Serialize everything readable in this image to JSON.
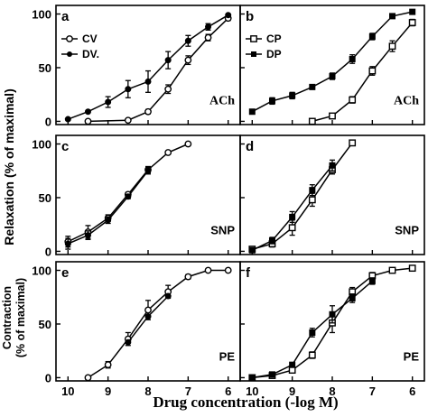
{
  "chart_data": {
    "type": "line",
    "xlabel": "Drug concentration (-log M)",
    "ylabels": {
      "relaxation": "Relaxation (% of maximal)",
      "contraction_line1": "Contraction",
      "contraction_line2": "(% of maximal)"
    },
    "x_ticks": [
      10,
      9,
      8,
      7,
      6
    ],
    "x_tick_labels": [
      "10",
      "9",
      "8",
      "7",
      "6"
    ],
    "y_ticks": [
      0,
      50,
      100
    ],
    "y_tick_labels": [
      "0",
      "50",
      "100"
    ],
    "xlim": [
      10.3,
      5.7
    ],
    "ylim": [
      -3,
      108
    ],
    "panels": [
      {
        "letter": "a",
        "agent": "ACh",
        "column": 0,
        "row": 0,
        "legend": [
          "CV",
          "DV."
        ],
        "series": [
          {
            "name": "CV",
            "marker": "open-circle",
            "x": [
              9.5,
              8.5,
              8,
              7.5,
              7,
              6.5,
              6
            ],
            "y": [
              0,
              1,
              9,
              30,
              57,
              78,
              96
            ],
            "err": [
              0,
              0,
              2,
              4,
              4,
              3,
              2
            ]
          },
          {
            "name": "DV.",
            "marker": "filled-circle",
            "x": [
              10,
              9.5,
              9,
              8.5,
              8,
              7.5,
              7,
              6.5,
              6
            ],
            "y": [
              2,
              9,
              18,
              30,
              37,
              57,
              75,
              88,
              99
            ],
            "err": [
              0,
              0,
              5,
              8,
              10,
              8,
              5,
              3,
              0
            ]
          }
        ]
      },
      {
        "letter": "b",
        "agent": "ACh",
        "column": 1,
        "row": 0,
        "legend": [
          "CP",
          "DP"
        ],
        "series": [
          {
            "name": "CP",
            "marker": "open-square",
            "x": [
              8.5,
              8,
              7.5,
              7,
              6.5,
              6
            ],
            "y": [
              0,
              5,
              20,
              47,
              70,
              92
            ],
            "err": [
              0,
              0,
              3,
              4,
              5,
              3
            ]
          },
          {
            "name": "DP",
            "marker": "filled-square",
            "x": [
              10,
              9.5,
              9,
              8.5,
              8,
              7.5,
              7,
              6.5,
              6
            ],
            "y": [
              9,
              19,
              24,
              32,
              42,
              58,
              79,
              98,
              102
            ],
            "err": [
              0,
              3,
              3,
              2,
              3,
              4,
              3,
              0,
              0
            ]
          }
        ]
      },
      {
        "letter": "c",
        "agent": "SNP",
        "column": 0,
        "row": 1,
        "series": [
          {
            "name": "CV",
            "marker": "open-circle",
            "x": [
              10,
              9.5,
              9,
              8.5,
              8,
              7.5,
              7
            ],
            "y": [
              9,
              18,
              31,
              53,
              76,
              92,
              100
            ],
            "err": [
              5,
              6,
              3,
              2,
              3,
              0,
              0
            ]
          },
          {
            "name": "DV.",
            "marker": "filled-circle",
            "x": [
              10,
              9.5,
              9,
              8.5,
              8
            ],
            "y": [
              7,
              15,
              29,
              51,
              75
            ],
            "err": [
              5,
              4,
              3,
              2,
              3
            ]
          }
        ]
      },
      {
        "letter": "d",
        "agent": "SNP",
        "column": 1,
        "row": 1,
        "series": [
          {
            "name": "CP",
            "marker": "open-square",
            "x": [
              10,
              9.5,
              9,
              8.5,
              8,
              7.5
            ],
            "y": [
              2,
              7,
              22,
              48,
              76,
              101
            ],
            "err": [
              0,
              3,
              7,
              6,
              4,
              0
            ]
          },
          {
            "name": "DP",
            "marker": "filled-square",
            "x": [
              10,
              9.5,
              9,
              8.5,
              8
            ],
            "y": [
              1,
              10,
              32,
              57,
              80
            ],
            "err": [
              0,
              3,
              5,
              5,
              5
            ]
          }
        ]
      },
      {
        "letter": "e",
        "agent": "PE",
        "column": 0,
        "row": 2,
        "series": [
          {
            "name": "CV",
            "marker": "open-circle",
            "x": [
              9.5,
              9,
              8.5,
              8,
              7.5,
              7,
              6.5,
              6
            ],
            "y": [
              0,
              12,
              36,
              63,
              80,
              94,
              100,
              100
            ],
            "err": [
              0,
              3,
              6,
              9,
              6,
              2,
              0,
              0
            ]
          },
          {
            "name": "DV.",
            "marker": "filled-circle",
            "x": [
              8.5,
              8,
              7.5
            ],
            "y": [
              33,
              57,
              76
            ],
            "err": [
              0,
              0,
              0
            ]
          }
        ]
      },
      {
        "letter": "f",
        "agent": "PE",
        "column": 1,
        "row": 2,
        "series": [
          {
            "name": "CP",
            "marker": "open-square",
            "x": [
              10,
              9.5,
              9,
              8.5,
              8,
              7.5,
              7,
              6.5,
              6
            ],
            "y": [
              0,
              2,
              7,
              21,
              51,
              80,
              95,
              100,
              102
            ],
            "err": [
              0,
              0,
              2,
              3,
              9,
              4,
              3,
              0,
              0
            ]
          },
          {
            "name": "DP",
            "marker": "filled-square",
            "x": [
              10,
              9.5,
              9,
              8.5,
              8,
              7.5,
              7
            ],
            "y": [
              0,
              3,
              12,
              42,
              59,
              74,
              90
            ],
            "err": [
              0,
              0,
              2,
              4,
              8,
              4,
              3
            ]
          }
        ]
      }
    ]
  }
}
